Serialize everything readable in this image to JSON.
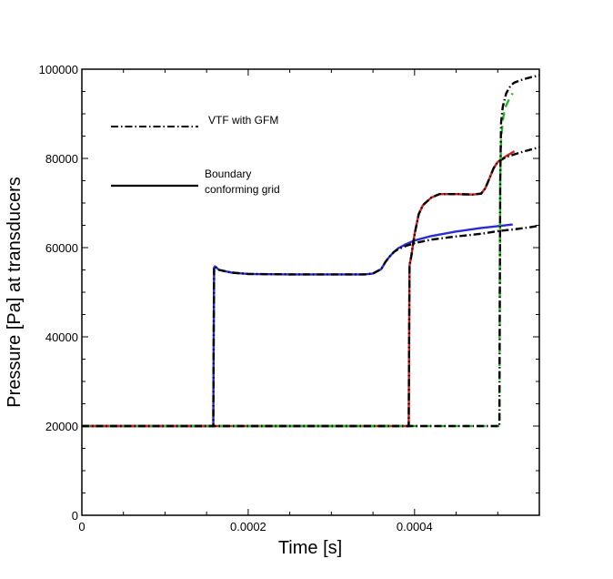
{
  "chart_data": {
    "type": "line",
    "title": "",
    "xlabel": "Time [s]",
    "ylabel": "Pressure [Pa] at transducers",
    "xlim": [
      0,
      0.00055
    ],
    "ylim": [
      0,
      100000
    ],
    "x_ticks": [
      0,
      0.0002,
      0.0004
    ],
    "x_tick_labels": [
      "0",
      "0.0002",
      "0.0004"
    ],
    "y_ticks": [
      0,
      20000,
      40000,
      60000,
      80000,
      100000
    ],
    "y_tick_labels": [
      "0",
      "20000",
      "40000",
      "60000",
      "80000",
      "100000"
    ],
    "grid": false,
    "legend_position": "top-left",
    "legend": [
      {
        "label": "VTF with GFM",
        "style": "dashdot",
        "color": "#000000"
      },
      {
        "label_lines": [
          "Boundary",
          "conforming grid"
        ],
        "style": "solid",
        "color": "#000000"
      }
    ],
    "series": [
      {
        "color": "#2a2ad6",
        "style": "solid",
        "x": [
          0,
          0.000158,
          0.0001585,
          0.000159,
          0.00016,
          0.000165,
          0.00018,
          0.0002,
          0.00025,
          0.0003,
          0.00034,
          0.00035,
          0.00036,
          0.000365,
          0.00037,
          0.000375,
          0.00038,
          0.00039,
          0.0004,
          0.00042,
          0.00045,
          0.00048,
          0.0005,
          0.000518
        ],
        "y": [
          20000,
          20000,
          40000,
          55500,
          55800,
          55000,
          54400,
          54100,
          54000,
          54000,
          54000,
          54200,
          55200,
          56800,
          58000,
          59000,
          59800,
          60800,
          61600,
          62600,
          63600,
          64400,
          64800,
          65200
        ]
      },
      {
        "color": "#000000",
        "style": "dashdot",
        "x": [
          0,
          0.000158,
          0.0001585,
          0.000159,
          0.00016,
          0.000165,
          0.00018,
          0.0002,
          0.00025,
          0.0003,
          0.00034,
          0.00035,
          0.00036,
          0.000365,
          0.00037,
          0.000375,
          0.00038,
          0.00039,
          0.0004,
          0.00042,
          0.00045,
          0.00048,
          0.0005,
          0.00052,
          0.00054,
          0.00055
        ],
        "y": [
          20000,
          20000,
          40000,
          55500,
          55800,
          55000,
          54400,
          54100,
          54000,
          54000,
          54000,
          54200,
          55200,
          56800,
          58000,
          59000,
          59600,
          60400,
          61000,
          61800,
          62500,
          63100,
          63700,
          64100,
          64600,
          64900
        ]
      },
      {
        "color": "#d42020",
        "style": "solid",
        "x": [
          0,
          0.000393,
          0.0003935,
          0.000394,
          0.000396,
          0.0004,
          0.000405,
          0.00041,
          0.00042,
          0.00043,
          0.00045,
          0.00047,
          0.00048,
          0.000485,
          0.00049,
          0.000495,
          0.0005,
          0.00051,
          0.00052
        ],
        "y": [
          20000,
          20000,
          40000,
          56000,
          58000,
          63000,
          67500,
          69500,
          71200,
          72000,
          72000,
          71900,
          72100,
          73300,
          75500,
          77800,
          79200,
          80500,
          81600
        ]
      },
      {
        "color": "#000000",
        "style": "dashdot",
        "x": [
          0,
          0.000393,
          0.0003935,
          0.000394,
          0.000396,
          0.0004,
          0.000405,
          0.00041,
          0.00042,
          0.00043,
          0.00045,
          0.00047,
          0.00048,
          0.000485,
          0.00049,
          0.000495,
          0.0005,
          0.00051,
          0.00053,
          0.00055
        ],
        "y": [
          20000,
          20000,
          40000,
          56000,
          58000,
          63000,
          67500,
          69500,
          71200,
          72000,
          72000,
          71900,
          72100,
          73300,
          75500,
          77800,
          79200,
          80300,
          81500,
          82500
        ]
      },
      {
        "color": "#22b822",
        "style": "dashed",
        "x": [
          0,
          0.000502,
          0.0005025,
          0.000503,
          0.000504,
          0.000506,
          0.000508,
          0.00051,
          0.000513,
          0.000516,
          0.000518
        ],
        "y": [
          20000,
          20000,
          50000,
          75000,
          84000,
          88500,
          90500,
          91800,
          93000,
          94000,
          94600
        ]
      },
      {
        "color": "#000000",
        "style": "dashdot",
        "x": [
          0,
          0.000502,
          0.0005025,
          0.000503,
          0.000504,
          0.000506,
          0.000508,
          0.00051,
          0.000513,
          0.000516,
          0.00052,
          0.00053,
          0.00054,
          0.00055
        ],
        "y": [
          20000,
          20000,
          50000,
          75000,
          88000,
          91500,
          93000,
          94500,
          95600,
          96400,
          97000,
          97700,
          98200,
          98600
        ]
      }
    ]
  }
}
